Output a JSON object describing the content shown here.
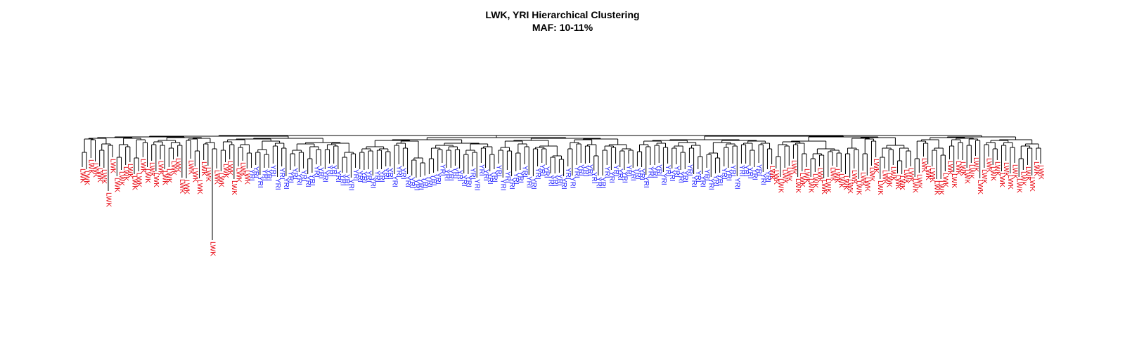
{
  "chart_data": {
    "type": "dendrogram",
    "title": "LWK, YRI Hierarchical Clustering",
    "subtitle": "MAF: 10-11%",
    "label_colors": {
      "LWK": "#e8000b",
      "YRI": "#1a1aff"
    },
    "leaf_label": {
      "LWK": "LWK",
      "YRI": "YRI"
    },
    "segments": [
      {
        "group": "LWK",
        "count": 37,
        "outliers": [
          {
            "after": 5,
            "depth": "medium"
          },
          {
            "after": 28,
            "depth": "long"
          }
        ]
      },
      {
        "group": "YRI",
        "count": 120
      },
      {
        "group": "LWK",
        "count": 62,
        "outliers": [
          {
            "after": 38,
            "depth": "short"
          }
        ]
      }
    ]
  }
}
